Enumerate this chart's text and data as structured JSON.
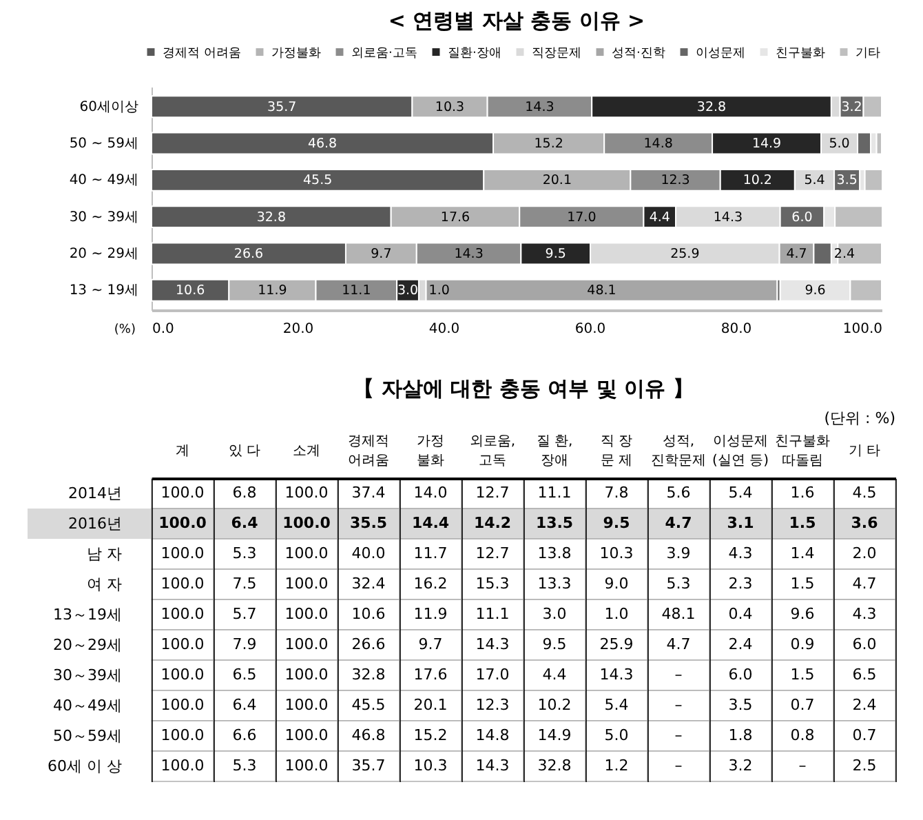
{
  "chart_data": [
    {
      "type": "bar",
      "title": "< 연령별 자살 충동 이유 >",
      "orientation": "horizontal",
      "stacked": true,
      "legend": "top",
      "categories": [
        "60세이상",
        "50 ~ 59세",
        "40 ~ 49세",
        "30 ~ 39세",
        "20 ~ 29세",
        "13 ~ 19세"
      ],
      "xlabel": "(%)",
      "xlim": [
        0,
        100
      ],
      "xticks": [
        {
          "value": 0,
          "label": "0.0"
        },
        {
          "value": 20,
          "label": "20.0"
        },
        {
          "value": 40,
          "label": "40.0"
        },
        {
          "value": 60,
          "label": "60.0"
        },
        {
          "value": 80,
          "label": "80.0"
        },
        {
          "value": 100,
          "label": "100.0"
        }
      ],
      "series": [
        {
          "name": "경제적 어려움",
          "color": "#595959",
          "values": [
            35.7,
            46.8,
            45.5,
            32.8,
            26.6,
            10.6
          ],
          "value_labels": [
            "35.7",
            "46.8",
            "45.5",
            "32.8",
            "26.6",
            "10.6"
          ]
        },
        {
          "name": "가정불화",
          "color": "#b4b4b4",
          "values": [
            10.3,
            15.2,
            20.1,
            17.6,
            9.7,
            11.9
          ],
          "value_labels": [
            "10.3",
            "15.2",
            "20.1",
            "17.6",
            "9.7",
            "11.9"
          ]
        },
        {
          "name": "외로움·고독",
          "color": "#8c8c8c",
          "values": [
            14.3,
            14.8,
            12.3,
            17.0,
            14.3,
            11.1
          ],
          "value_labels": [
            "14.3",
            "14.8",
            "12.3",
            "17.0",
            "14.3",
            "11.1"
          ]
        },
        {
          "name": "질환·장애",
          "color": "#262626",
          "values": [
            32.8,
            14.9,
            10.2,
            4.4,
            9.5,
            3.0
          ],
          "value_labels": [
            "32.8",
            "14.9",
            "10.2",
            "4.4",
            "9.5",
            "3.0"
          ]
        },
        {
          "name": "직장문제",
          "color": "#dadada",
          "values": [
            1.2,
            5.0,
            5.4,
            14.3,
            25.9,
            1.0
          ],
          "value_labels": [
            null,
            "5.0",
            "5.4",
            "14.3",
            "25.9",
            "1.0"
          ]
        },
        {
          "name": "성적·진학",
          "color": "#a6a6a6",
          "values": [
            null,
            null,
            null,
            null,
            4.7,
            48.1
          ],
          "value_labels": [
            null,
            null,
            null,
            null,
            "4.7",
            "48.1"
          ]
        },
        {
          "name": "이성문제",
          "color": "#666666",
          "values": [
            3.2,
            1.8,
            3.5,
            6.0,
            2.4,
            0.4
          ],
          "value_labels": [
            "3.2",
            null,
            "3.5",
            "6.0",
            "2.4",
            null
          ]
        },
        {
          "name": "친구불화",
          "color": "#e6e6e6",
          "values": [
            null,
            0.8,
            0.7,
            1.5,
            0.9,
            9.6
          ],
          "value_labels": [
            null,
            null,
            null,
            null,
            null,
            "9.6"
          ]
        },
        {
          "name": "기타",
          "color": "#bfbfbf",
          "values": [
            2.5,
            0.7,
            2.4,
            6.5,
            6.0,
            4.3
          ]
        }
      ]
    },
    {
      "type": "heatmap",
      "title": "【 자살에 대한 충동 여부 및 이유 】",
      "annotations": [
        "(단위 : %)"
      ],
      "grid": "x",
      "categories": [
        "계",
        "있 다",
        "소계",
        "경제적\n어려움",
        "가정\n불화",
        "외로움,\n고독",
        "질 환,\n장애",
        "직 장\n문 제",
        "성적,\n진학문제",
        "이성문제\n(실연 등)",
        "친구불화\n따돌림",
        "기 타"
      ],
      "y_categories": [
        "2014년",
        "2016년",
        "남 자",
        "여 자",
        "13～19세",
        "20～29세",
        "30～39세",
        "40～49세",
        "50～59세",
        "60세 이 상"
      ],
      "cells": [
        [
          100.0,
          6.8,
          100.0,
          37.4,
          14.0,
          12.7,
          11.1,
          7.8,
          5.6,
          5.4,
          1.6,
          4.5
        ],
        [
          100.0,
          6.4,
          100.0,
          35.5,
          14.4,
          14.2,
          13.5,
          9.5,
          4.7,
          3.1,
          1.5,
          3.6
        ],
        [
          100.0,
          5.3,
          100.0,
          40.0,
          11.7,
          12.7,
          13.8,
          10.3,
          3.9,
          4.3,
          1.4,
          2.0
        ],
        [
          100.0,
          7.5,
          100.0,
          32.4,
          16.2,
          15.3,
          13.3,
          9.0,
          5.3,
          2.3,
          1.5,
          4.7
        ],
        [
          100.0,
          5.7,
          100.0,
          10.6,
          11.9,
          11.1,
          3.0,
          1.0,
          48.1,
          0.4,
          9.6,
          4.3
        ],
        [
          100.0,
          7.9,
          100.0,
          26.6,
          9.7,
          14.3,
          9.5,
          25.9,
          4.7,
          2.4,
          0.9,
          6.0
        ],
        [
          100.0,
          6.5,
          100.0,
          32.8,
          17.6,
          17.0,
          4.4,
          14.3,
          null,
          6.0,
          1.5,
          6.5
        ],
        [
          100.0,
          6.4,
          100.0,
          45.5,
          20.1,
          12.3,
          10.2,
          5.4,
          null,
          3.5,
          0.7,
          2.4
        ],
        [
          100.0,
          6.6,
          100.0,
          46.8,
          15.2,
          14.8,
          14.9,
          5.0,
          null,
          1.8,
          0.8,
          0.7
        ],
        [
          100.0,
          5.3,
          100.0,
          35.7,
          10.3,
          14.3,
          32.8,
          1.2,
          null,
          3.2,
          null,
          2.5
        ]
      ],
      "cell_labels": [
        [
          "100.0",
          "6.8",
          "100.0",
          "37.4",
          "14.0",
          "12.7",
          "11.1",
          "7.8",
          "5.6",
          "5.4",
          "1.6",
          "4.5"
        ],
        [
          "100.0",
          "6.4",
          "100.0",
          "35.5",
          "14.4",
          "14.2",
          "13.5",
          "9.5",
          "4.7",
          "3.1",
          "1.5",
          "3.6"
        ],
        [
          "100.0",
          "5.3",
          "100.0",
          "40.0",
          "11.7",
          "12.7",
          "13.8",
          "10.3",
          "3.9",
          "4.3",
          "1.4",
          "2.0"
        ],
        [
          "100.0",
          "7.5",
          "100.0",
          "32.4",
          "16.2",
          "15.3",
          "13.3",
          "9.0",
          "5.3",
          "2.3",
          "1.5",
          "4.7"
        ],
        [
          "100.0",
          "5.7",
          "100.0",
          "10.6",
          "11.9",
          "11.1",
          "3.0",
          "1.0",
          "48.1",
          "0.4",
          "9.6",
          "4.3"
        ],
        [
          "100.0",
          "7.9",
          "100.0",
          "26.6",
          "9.7",
          "14.3",
          "9.5",
          "25.9",
          "4.7",
          "2.4",
          "0.9",
          "6.0"
        ],
        [
          "100.0",
          "6.5",
          "100.0",
          "32.8",
          "17.6",
          "17.0",
          "4.4",
          "14.3",
          "–",
          "6.0",
          "1.5",
          "6.5"
        ],
        [
          "100.0",
          "6.4",
          "100.0",
          "45.5",
          "20.1",
          "12.3",
          "10.2",
          "5.4",
          "–",
          "3.5",
          "0.7",
          "2.4"
        ],
        [
          "100.0",
          "6.6",
          "100.0",
          "46.8",
          "15.2",
          "14.8",
          "14.9",
          "5.0",
          "–",
          "1.8",
          "0.8",
          "0.7"
        ],
        [
          "100.0",
          "5.3",
          "100.0",
          "35.7",
          "10.3",
          "14.3",
          "32.8",
          "1.2",
          "–",
          "3.2",
          "–",
          "2.5"
        ]
      ],
      "bands": [
        {
          "axis": "y",
          "from": "2016년",
          "to": "2016년",
          "color": "#d9d9d9"
        }
      ]
    }
  ]
}
